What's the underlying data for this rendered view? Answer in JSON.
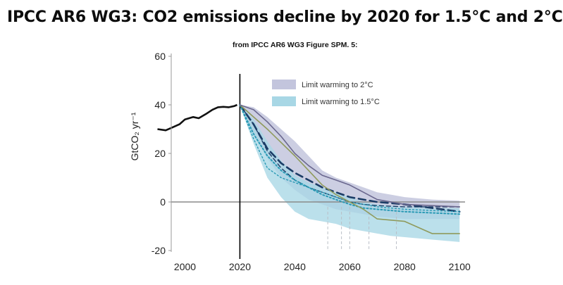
{
  "title": "IPCC AR6 WG3: CO2 emissions decline by 2020 for 1.5°C and 2°C",
  "subtitle": "from IPCC AR6 WG3 Figure SPM. 5:",
  "colors": {
    "historical": "#111111",
    "band_2c": "#c3c5dd",
    "band_1_5c": "#a8d7e5",
    "navy": "#1b3c66",
    "teal_dotted": "#2a9ab5",
    "olive": "#8f9a5c",
    "purple": "#6a678e",
    "zero_line": "#8a8a8a",
    "vline": "#000000"
  },
  "chart_data": {
    "type": "area",
    "title": "",
    "ylabel": "GtCO₂ yr⁻¹",
    "xlabel": "",
    "xlim": [
      1995,
      2102
    ],
    "ylim": [
      -20,
      60
    ],
    "xticks": [
      "2000",
      "2020",
      "2040",
      "2060",
      "2080",
      "2100"
    ],
    "xtick_values": [
      2000,
      2020,
      2040,
      2060,
      2080,
      2100
    ],
    "yticks": [
      "60",
      "40",
      "20",
      "0",
      "-20"
    ],
    "ytick_values": [
      60,
      40,
      20,
      0,
      -20
    ],
    "grid": false,
    "legend_position": "top-right",
    "legend": [
      {
        "label": "Limit warming to 2°C",
        "color": "#c3c5dd"
      },
      {
        "label": "Limit warming to 1.5°C",
        "color": "#a8d7e5"
      }
    ],
    "reference_lines": {
      "vertical_x": 2020,
      "horizontal_y": 0
    },
    "historical": {
      "x": [
        1990,
        1993,
        1995,
        1998,
        2000,
        2003,
        2005,
        2008,
        2010,
        2012,
        2014,
        2016,
        2018,
        2019
      ],
      "y": [
        30,
        29.5,
        30.5,
        32,
        34,
        35,
        34.5,
        36.5,
        38,
        39,
        39.2,
        39,
        39.5,
        40
      ]
    },
    "bands": [
      {
        "name": "Limit warming to 2°C",
        "x": [
          2020,
          2025,
          2030,
          2035,
          2040,
          2045,
          2050,
          2055,
          2060,
          2065,
          2070,
          2075,
          2080,
          2090,
          2100
        ],
        "upper": [
          40,
          39,
          35,
          30,
          25,
          19,
          13,
          10,
          8,
          6,
          4,
          3,
          2,
          1,
          0.5
        ],
        "lower": [
          40,
          28,
          18,
          10,
          5,
          1,
          -1,
          -3,
          -4,
          -5,
          -6,
          -6.5,
          -7,
          -7,
          -7
        ]
      },
      {
        "name": "Limit warming to 1.5°C",
        "x": [
          2020,
          2025,
          2030,
          2035,
          2040,
          2045,
          2050,
          2055,
          2060,
          2065,
          2070,
          2075,
          2080,
          2090,
          2100
        ],
        "upper": [
          40,
          34,
          25,
          17,
          11,
          8,
          6,
          4,
          2,
          0,
          -1,
          -1.5,
          -2,
          -2.5,
          -2.5
        ],
        "lower": [
          40,
          24,
          10,
          2,
          -4,
          -7,
          -8,
          -9,
          -11,
          -12,
          -13,
          -14,
          -14.5,
          -15.5,
          -16.5
        ]
      }
    ],
    "series": [
      {
        "style": "dashed",
        "color": "#1b3c66",
        "width": 2.6,
        "x": [
          2020,
          2025,
          2030,
          2035,
          2040,
          2045,
          2050,
          2055,
          2060,
          2065,
          2070,
          2080,
          2090,
          2100
        ],
        "y": [
          40,
          32,
          22,
          16,
          12,
          9,
          6,
          4,
          2,
          1,
          0,
          -1,
          -2.5,
          -4
        ]
      },
      {
        "style": "dashed",
        "color": "#1b3c66",
        "width": 1.4,
        "x": [
          2020,
          2025,
          2030,
          2035,
          2040,
          2045,
          2050,
          2055,
          2060,
          2065,
          2070,
          2080,
          2090,
          2100
        ],
        "y": [
          40,
          32,
          21,
          14,
          9,
          6,
          4,
          2,
          0,
          -1,
          -1.5,
          -2,
          -2,
          -2
        ]
      },
      {
        "style": "dotted",
        "color": "#2a9ab5",
        "width": 2,
        "x": [
          2020,
          2025,
          2030,
          2035,
          2040,
          2045,
          2050,
          2055,
          2060,
          2065,
          2070,
          2080,
          2090,
          2100
        ],
        "y": [
          40,
          28,
          19,
          13,
          9,
          6,
          3,
          1,
          -1,
          -2.5,
          -3,
          -4,
          -4.5,
          -5
        ]
      },
      {
        "style": "dotted",
        "color": "#2a9ab5",
        "width": 1.4,
        "x": [
          2020,
          2025,
          2030,
          2035,
          2040,
          2045,
          2050,
          2055,
          2060,
          2065,
          2070,
          2080,
          2090,
          2100
        ],
        "y": [
          40,
          26,
          14,
          10,
          8,
          6,
          4,
          2,
          0,
          -1,
          -2,
          -3,
          -3.5,
          -4
        ]
      },
      {
        "style": "solid",
        "color": "#8f9a5c",
        "width": 1.6,
        "x": [
          2020,
          2030,
          2040,
          2045,
          2050,
          2055,
          2060,
          2065,
          2070,
          2080,
          2090,
          2100
        ],
        "y": [
          40,
          30,
          19,
          13,
          7,
          3,
          0,
          -3,
          -7,
          -8,
          -13,
          -13
        ]
      },
      {
        "style": "solid",
        "color": "#6a678e",
        "width": 1.6,
        "x": [
          2020,
          2025,
          2030,
          2035,
          2040,
          2045,
          2050,
          2055,
          2060,
          2065,
          2070,
          2080,
          2090,
          2100
        ],
        "y": [
          40,
          38,
          33,
          27,
          20,
          15,
          11,
          9,
          7,
          4,
          1,
          -1,
          -1.5,
          -2
        ]
      }
    ],
    "markers": {
      "x": [
        2052,
        2057,
        2060,
        2067,
        2077
      ],
      "y_top": -2,
      "y_bottom": -20
    }
  }
}
